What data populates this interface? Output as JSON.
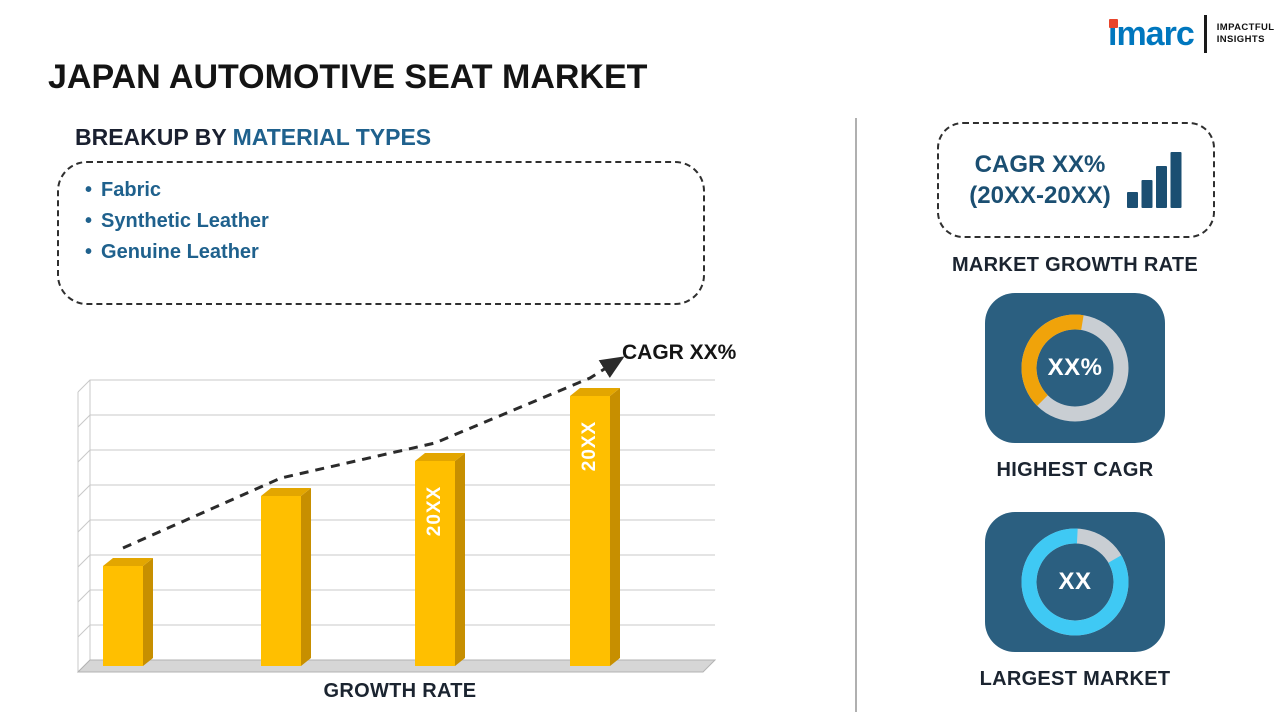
{
  "page": {
    "title": "JAPAN AUTOMOTIVE SEAT MARKET"
  },
  "logo": {
    "brand": "imarc",
    "tagline_line1": "IMPACTFUL",
    "tagline_line2": "INSIGHTS"
  },
  "breakup": {
    "heading_prefix": "BREAKUP BY ",
    "heading_highlight": "MATERIAL TYPES",
    "items": [
      "Fabric",
      "Synthetic Leather",
      "Genuine Leather"
    ]
  },
  "chart_data": [
    {
      "type": "bar",
      "title": "",
      "xlabel": "GROWTH RATE",
      "ylabel": "",
      "categories": [
        "",
        "",
        "20XX",
        "20XX"
      ],
      "values": [
        100,
        170,
        205,
        270
      ],
      "ylim": [
        0,
        280
      ],
      "value_unit": "relative bar height (no y-axis tick labels shown)",
      "grid": true,
      "style": "3d-bars",
      "trend_line": {
        "shape": "dashed rising arrow over bar tops",
        "label": "CAGR XX%"
      },
      "colors": {
        "bar_front": "#FFBF00",
        "bar_side": "#C78F00",
        "bar_top": "#E3A600",
        "trend": "#2B2B2B",
        "grid": "#C8C8C8",
        "floor": "#D6D6D6"
      }
    },
    {
      "type": "pie",
      "variant": "donut",
      "center_text": "XX%",
      "slices": [
        {
          "name": "highlighted",
          "fraction": 0.4,
          "color": "#F0A30A"
        },
        {
          "name": "remainder",
          "fraction": 0.6,
          "color": "#C9CED3"
        }
      ],
      "start_clock_deg": 225
    },
    {
      "type": "pie",
      "variant": "donut",
      "center_text": "XX",
      "slices": [
        {
          "name": "highlighted",
          "fraction": 0.84,
          "color": "#3FC9F4"
        },
        {
          "name": "remainder",
          "fraction": 0.16,
          "color": "#C9CED3"
        }
      ],
      "start_clock_deg": 60
    }
  ],
  "right_panel": {
    "growth_box": {
      "line1": "CAGR XX%",
      "line2": "(20XX-20XX)",
      "icon": "bar-chart-icon",
      "caption": "MARKET GROWTH RATE"
    },
    "highest_cagr": {
      "caption": "HIGHEST CAGR"
    },
    "largest_market": {
      "caption": "LARGEST MARKET"
    }
  },
  "colors": {
    "accent_blue": "#1F618D",
    "deep_blue_text": "#1B4F72",
    "card_bg": "#2B5F80",
    "caption_dark": "#1B2430",
    "divider_gray": "#B0B0B0",
    "title_dark": "#141414",
    "logo_blue": "#0077BE",
    "logo_accent_red": "#E8452C"
  }
}
